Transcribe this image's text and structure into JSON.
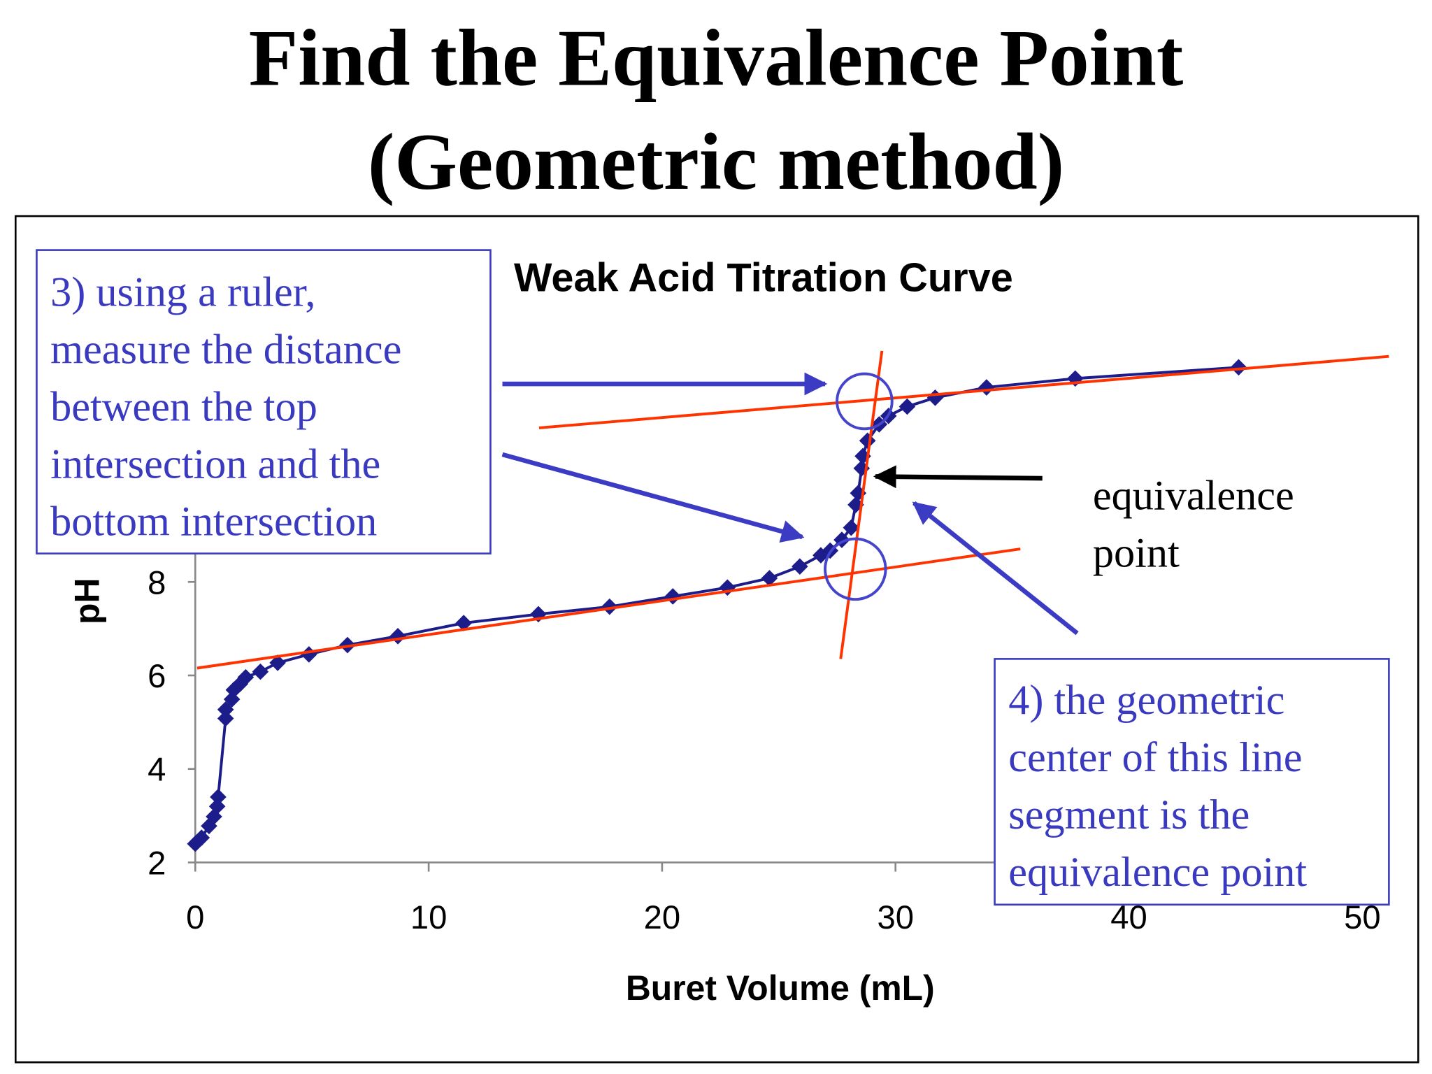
{
  "slide_title": [
    "Find the Equivalence Point",
    "(Geometric method)"
  ],
  "chart_data": {
    "type": "line",
    "title": "Weak Acid Titration Curve",
    "x_label": "Buret Volume (mL)",
    "y_label": "pH",
    "color": "#1c1c8a",
    "x": [
      0,
      0.27,
      0.59,
      0.8,
      0.94,
      0.98,
      1.3,
      1.3,
      1.57,
      1.65,
      1.92,
      2.16,
      2.79,
      3.53,
      4.87,
      6.52,
      8.68,
      11.5,
      14.7,
      17.75,
      20.46,
      22.8,
      24.6,
      25.9,
      26.8,
      27.2,
      27.7,
      28.1,
      28.3,
      28.4,
      28.55,
      28.6,
      28.8,
      29.3,
      29.7,
      30.5,
      31.7,
      33.9,
      37.7,
      44.7
    ],
    "values": [
      2.4,
      2.53,
      2.78,
      2.98,
      3.2,
      3.4,
      5.08,
      5.27,
      5.49,
      5.69,
      5.82,
      5.96,
      6.08,
      6.27,
      6.45,
      6.65,
      6.84,
      7.12,
      7.31,
      7.47,
      7.69,
      7.88,
      8.08,
      8.33,
      8.57,
      8.67,
      8.9,
      9.16,
      9.65,
      9.9,
      10.43,
      10.69,
      11.02,
      11.37,
      11.55,
      11.75,
      11.94,
      12.16,
      12.35,
      12.59
    ],
    "xlim": [
      0,
      50
    ],
    "xticks": [
      0,
      10,
      20,
      30,
      40,
      50
    ],
    "ylim": [
      2,
      14
    ],
    "yticks": [
      2,
      4,
      6,
      8
    ],
    "annotations": [
      {
        "lines": [
          "3) using a ruler,",
          "measure the distance",
          "between the top",
          "intersection and the",
          "bottom intersection"
        ]
      },
      {
        "lines": [
          "4) the geometric",
          "center of this line",
          "segment is the",
          "equivalence point"
        ]
      },
      {
        "lines": [
          "equivalence",
          "point"
        ]
      }
    ]
  }
}
